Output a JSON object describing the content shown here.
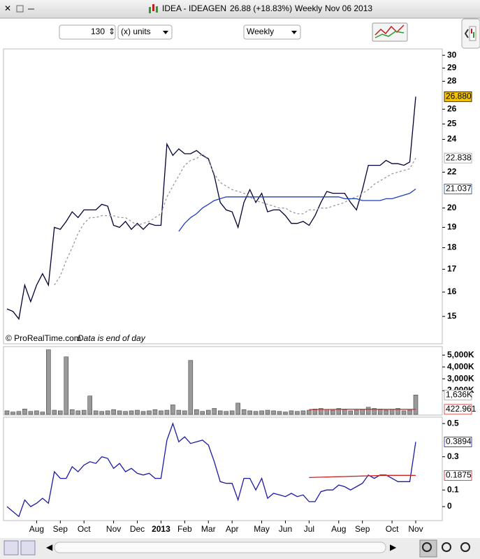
{
  "toolbar": {
    "title": "IDEA - IDEAGEN",
    "price_change": "26.88 (+18.83%)",
    "period": "Weekly",
    "date": "Nov 06 2013"
  },
  "controls": {
    "units_count": "130",
    "units": "(x) units",
    "timeframe": "Weekly"
  },
  "chart_data": [
    {
      "type": "line",
      "log_scale": true,
      "source": "© ProRealTime.com",
      "note": "Data is end of day",
      "ylim": [
        14.0,
        30.4
      ],
      "yticks": [
        15,
        16,
        17,
        18,
        19,
        20,
        22,
        24,
        25,
        26,
        28,
        29,
        30
      ],
      "series": [
        {
          "color": "#000033",
          "tag_fill": "#f5c400",
          "values": [
            15.3,
            15.2,
            14.9,
            16.3,
            15.6,
            16.3,
            16.8,
            16.3,
            19.0,
            18.9,
            19.3,
            19.8,
            19.5,
            19.9,
            19.9,
            19.9,
            20.2,
            20.1,
            19.1,
            19.0,
            19.3,
            18.9,
            19.2,
            18.9,
            19.2,
            19.1,
            19.1,
            23.7,
            23.0,
            23.4,
            23.1,
            23.1,
            23.3,
            23.0,
            22.8,
            21.8,
            20.3,
            19.9,
            19.8,
            19.0,
            20.3,
            21.0,
            20.3,
            20.8,
            19.8,
            19.9,
            19.9,
            19.6,
            19.2,
            19.2,
            19.3,
            19.1,
            19.6,
            20.3,
            20.9,
            20.8,
            20.8,
            20.8,
            20.3,
            19.9,
            21.0,
            22.4,
            22.4,
            22.4,
            22.7,
            22.5,
            22.5,
            22.4,
            22.6,
            26.88
          ],
          "value_labels": [
            null,
            null,
            null,
            null,
            null,
            null,
            null,
            null,
            null,
            null,
            null,
            null,
            null,
            null,
            null,
            null,
            null,
            null,
            null,
            null,
            null,
            null,
            null,
            null,
            null,
            null,
            null,
            null,
            null,
            null,
            null,
            null,
            null,
            null,
            null,
            null,
            null,
            null,
            null,
            null,
            null,
            null,
            null,
            null,
            null,
            null,
            null,
            null,
            null,
            null,
            null,
            null,
            null,
            null,
            null,
            null,
            null,
            null,
            null,
            null,
            null,
            null,
            null,
            null,
            null,
            null,
            null,
            null,
            null,
            "26.880"
          ]
        },
        {
          "color": "#9a9a9a",
          "dash": true,
          "values": [
            null,
            null,
            null,
            null,
            null,
            null,
            null,
            null,
            16.3,
            16.7,
            17.4,
            18.0,
            18.7,
            19.2,
            19.5,
            19.5,
            19.6,
            19.6,
            19.6,
            19.5,
            19.5,
            19.3,
            19.1,
            19.2,
            19.3,
            19.5,
            19.7,
            20.6,
            21.2,
            21.8,
            22.4,
            22.7,
            22.8,
            23.1,
            22.7,
            21.9,
            21.4,
            21.2,
            21.0,
            20.9,
            20.8,
            20.6,
            20.4,
            20.3,
            20.2,
            20.1,
            20.0,
            20.0,
            19.8,
            19.7,
            19.7,
            19.9,
            19.9,
            20.0,
            20.0,
            20.1,
            20.2,
            20.3,
            20.5,
            20.6,
            20.8,
            21.0,
            21.3,
            21.5,
            21.7,
            21.9,
            22.0,
            22.1,
            22.2,
            22.838
          ]
        },
        {
          "color": "#1f3fbf",
          "values": [
            null,
            null,
            null,
            null,
            null,
            null,
            null,
            null,
            null,
            null,
            null,
            null,
            null,
            null,
            null,
            null,
            null,
            null,
            null,
            null,
            null,
            null,
            null,
            null,
            null,
            null,
            null,
            null,
            null,
            18.8,
            19.2,
            19.5,
            19.7,
            20.0,
            20.2,
            20.4,
            20.5,
            20.6,
            20.6,
            20.6,
            20.6,
            20.6,
            20.6,
            20.6,
            20.6,
            20.6,
            20.6,
            20.6,
            20.6,
            20.6,
            20.6,
            20.6,
            20.6,
            20.6,
            20.6,
            20.6,
            20.6,
            20.5,
            20.5,
            20.5,
            20.4,
            20.4,
            20.4,
            20.4,
            20.5,
            20.5,
            20.6,
            20.7,
            20.8,
            21.037
          ]
        }
      ]
    },
    {
      "type": "bar",
      "ylim": [
        0,
        5600000
      ],
      "yticks": [
        {
          "value": 2000000,
          "label": "2,000K"
        },
        {
          "value": 3000000,
          "label": "3,000K"
        },
        {
          "value": 4000000,
          "label": "4,000K"
        },
        {
          "value": 5000000,
          "label": "5,000K"
        }
      ],
      "series": [
        {
          "color": "#9a9a9a",
          "values": [
            300000,
            200000,
            250000,
            450000,
            250000,
            300000,
            200000,
            5450000,
            350000,
            300000,
            4850000,
            400000,
            300000,
            350000,
            1550000,
            300000,
            250000,
            300000,
            400000,
            300000,
            250000,
            300000,
            350000,
            250000,
            300000,
            400000,
            300000,
            350000,
            800000,
            350000,
            300000,
            4550000,
            400000,
            250000,
            350000,
            500000,
            300000,
            250000,
            300000,
            950000,
            400000,
            300000,
            250000,
            300000,
            350000,
            300000,
            250000,
            200000,
            300000,
            250000,
            300000,
            350000,
            450000,
            500000,
            400000,
            350000,
            500000,
            400000,
            300000,
            350000,
            400000,
            600000,
            500000,
            450000,
            350000,
            400000,
            500000,
            300000,
            350000,
            1636000
          ],
          "value_labels": [
            null,
            null,
            null,
            null,
            null,
            null,
            null,
            null,
            null,
            null,
            null,
            null,
            null,
            null,
            null,
            null,
            null,
            null,
            null,
            null,
            null,
            null,
            null,
            null,
            null,
            null,
            null,
            null,
            null,
            null,
            null,
            null,
            null,
            null,
            null,
            null,
            null,
            null,
            null,
            null,
            null,
            null,
            null,
            null,
            null,
            null,
            null,
            null,
            null,
            null,
            null,
            null,
            null,
            null,
            null,
            null,
            null,
            null,
            null,
            null,
            null,
            null,
            null,
            null,
            null,
            null,
            null,
            null,
            null,
            "1,636K"
          ]
        },
        {
          "type": "line",
          "color": "#cc3333",
          "values": [
            null,
            null,
            null,
            null,
            null,
            null,
            null,
            null,
            null,
            null,
            null,
            null,
            null,
            null,
            null,
            null,
            null,
            null,
            null,
            null,
            null,
            null,
            null,
            null,
            null,
            null,
            null,
            null,
            null,
            null,
            null,
            null,
            null,
            null,
            null,
            null,
            null,
            null,
            null,
            null,
            null,
            null,
            null,
            null,
            null,
            null,
            null,
            null,
            null,
            null,
            null,
            400000,
            405000,
            410000,
            415000,
            420000,
            425000,
            430000,
            430000,
            428000,
            425000,
            424000,
            423000,
            423000,
            423000,
            423000,
            423000,
            423000,
            423000,
            422961
          ],
          "value_labels": [
            null,
            null,
            null,
            null,
            null,
            null,
            null,
            null,
            null,
            null,
            null,
            null,
            null,
            null,
            null,
            null,
            null,
            null,
            null,
            null,
            null,
            null,
            null,
            null,
            null,
            null,
            null,
            null,
            null,
            null,
            null,
            null,
            null,
            null,
            null,
            null,
            null,
            null,
            null,
            null,
            null,
            null,
            null,
            null,
            null,
            null,
            null,
            null,
            null,
            null,
            null,
            null,
            null,
            null,
            null,
            null,
            null,
            null,
            null,
            null,
            null,
            null,
            null,
            null,
            null,
            null,
            null,
            null,
            null,
            "422.961"
          ]
        }
      ]
    },
    {
      "type": "line",
      "categories": [
        null,
        null,
        null,
        null,
        null,
        "Aug",
        null,
        null,
        null,
        "Sep",
        null,
        null,
        null,
        "Oct",
        null,
        null,
        null,
        null,
        "Nov",
        null,
        null,
        null,
        "Dec",
        null,
        null,
        null,
        "2013",
        null,
        null,
        null,
        "Feb",
        null,
        null,
        null,
        "Mar",
        null,
        null,
        null,
        "Apr",
        null,
        null,
        null,
        null,
        "May",
        null,
        null,
        null,
        "Jun",
        null,
        null,
        null,
        "Jul",
        null,
        null,
        null,
        null,
        "Aug",
        null,
        null,
        null,
        "Sep",
        null,
        null,
        null,
        null,
        "Oct",
        null,
        null,
        null,
        "Nov"
      ],
      "ylim": [
        -0.08,
        0.53
      ],
      "yticks": [
        0,
        0.1,
        0.3,
        0.5
      ],
      "series": [
        {
          "color": "#1a1aa6",
          "values": [
            0,
            -0.03,
            -0.06,
            0.04,
            0,
            0.02,
            0.05,
            0.02,
            0.21,
            0.17,
            0.17,
            0.24,
            0.21,
            0.25,
            0.27,
            0.26,
            0.3,
            0.29,
            0.23,
            0.26,
            0.21,
            0.23,
            0.2,
            0.19,
            0.2,
            0.17,
            0.17,
            0.4,
            0.5,
            0.39,
            0.42,
            0.38,
            0.39,
            0.4,
            0.37,
            0.27,
            0.15,
            0.14,
            0.14,
            0.04,
            0.17,
            0.17,
            0.1,
            0.17,
            0.05,
            0.08,
            0.07,
            0.06,
            0.08,
            0.06,
            0.07,
            0.03,
            0.03,
            0.09,
            0.1,
            0.1,
            0.13,
            0.12,
            0.1,
            0.12,
            0.14,
            0.19,
            0.17,
            0.19,
            0.19,
            0.17,
            0.15,
            0.15,
            0.15,
            0.3894
          ]
        },
        {
          "color": "#cc2222",
          "values": [
            null,
            null,
            null,
            null,
            null,
            null,
            null,
            null,
            null,
            null,
            null,
            null,
            null,
            null,
            null,
            null,
            null,
            null,
            null,
            null,
            null,
            null,
            null,
            null,
            null,
            null,
            null,
            null,
            null,
            null,
            null,
            null,
            null,
            null,
            null,
            null,
            null,
            null,
            null,
            null,
            null,
            null,
            null,
            null,
            null,
            null,
            null,
            null,
            null,
            null,
            null,
            0.175,
            0.176,
            0.177,
            0.178,
            0.179,
            0.18,
            0.181,
            0.182,
            0.183,
            0.184,
            0.185,
            0.186,
            0.187,
            0.188,
            0.188,
            0.188,
            0.188,
            0.188,
            0.1875
          ]
        }
      ]
    }
  ]
}
